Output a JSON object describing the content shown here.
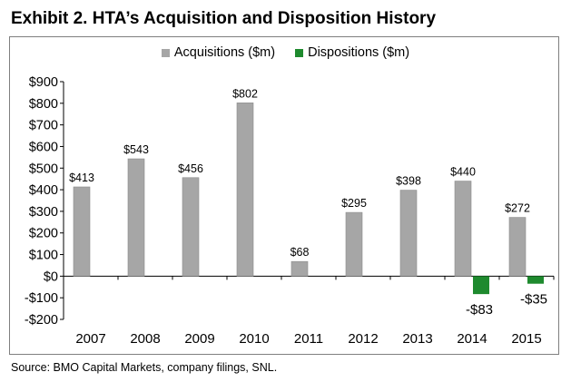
{
  "title": "Exhibit 2. HTA’s Acquisition and Disposition History",
  "source": "Source: BMO Capital Markets, company filings, SNL.",
  "colors": {
    "acquisitions": "#a6a6a6",
    "dispositions": "#1e8a2e"
  },
  "chart_data": {
    "type": "bar",
    "title": "",
    "xlabel": "",
    "ylabel": "",
    "categories": [
      "2007",
      "2008",
      "2009",
      "2010",
      "2011",
      "2012",
      "2013",
      "2014",
      "2015"
    ],
    "series": [
      {
        "name": "Acquisitions ($m)",
        "values": [
          413,
          543,
          456,
          802,
          68,
          295,
          398,
          440,
          272
        ],
        "labels": [
          "$413",
          "$543",
          "$456",
          "$802",
          "$68",
          "$295",
          "$398",
          "$440",
          "$272"
        ]
      },
      {
        "name": "Dispositions ($m)",
        "values": [
          null,
          null,
          null,
          null,
          null,
          null,
          null,
          -83,
          -35
        ],
        "labels": [
          "",
          "",
          "",
          "",
          "",
          "",
          "",
          "-$83",
          "-$35"
        ]
      }
    ],
    "ylim": [
      -200,
      900
    ],
    "yticks": [
      900,
      800,
      700,
      600,
      500,
      400,
      300,
      200,
      100,
      0,
      -100,
      -200
    ],
    "ytick_labels": [
      "$900",
      "$800",
      "$700",
      "$600",
      "$500",
      "$400",
      "$300",
      "$200",
      "$100",
      "$0",
      "-$100",
      "-$200"
    ],
    "grid": false,
    "legend_position": "top-center"
  }
}
